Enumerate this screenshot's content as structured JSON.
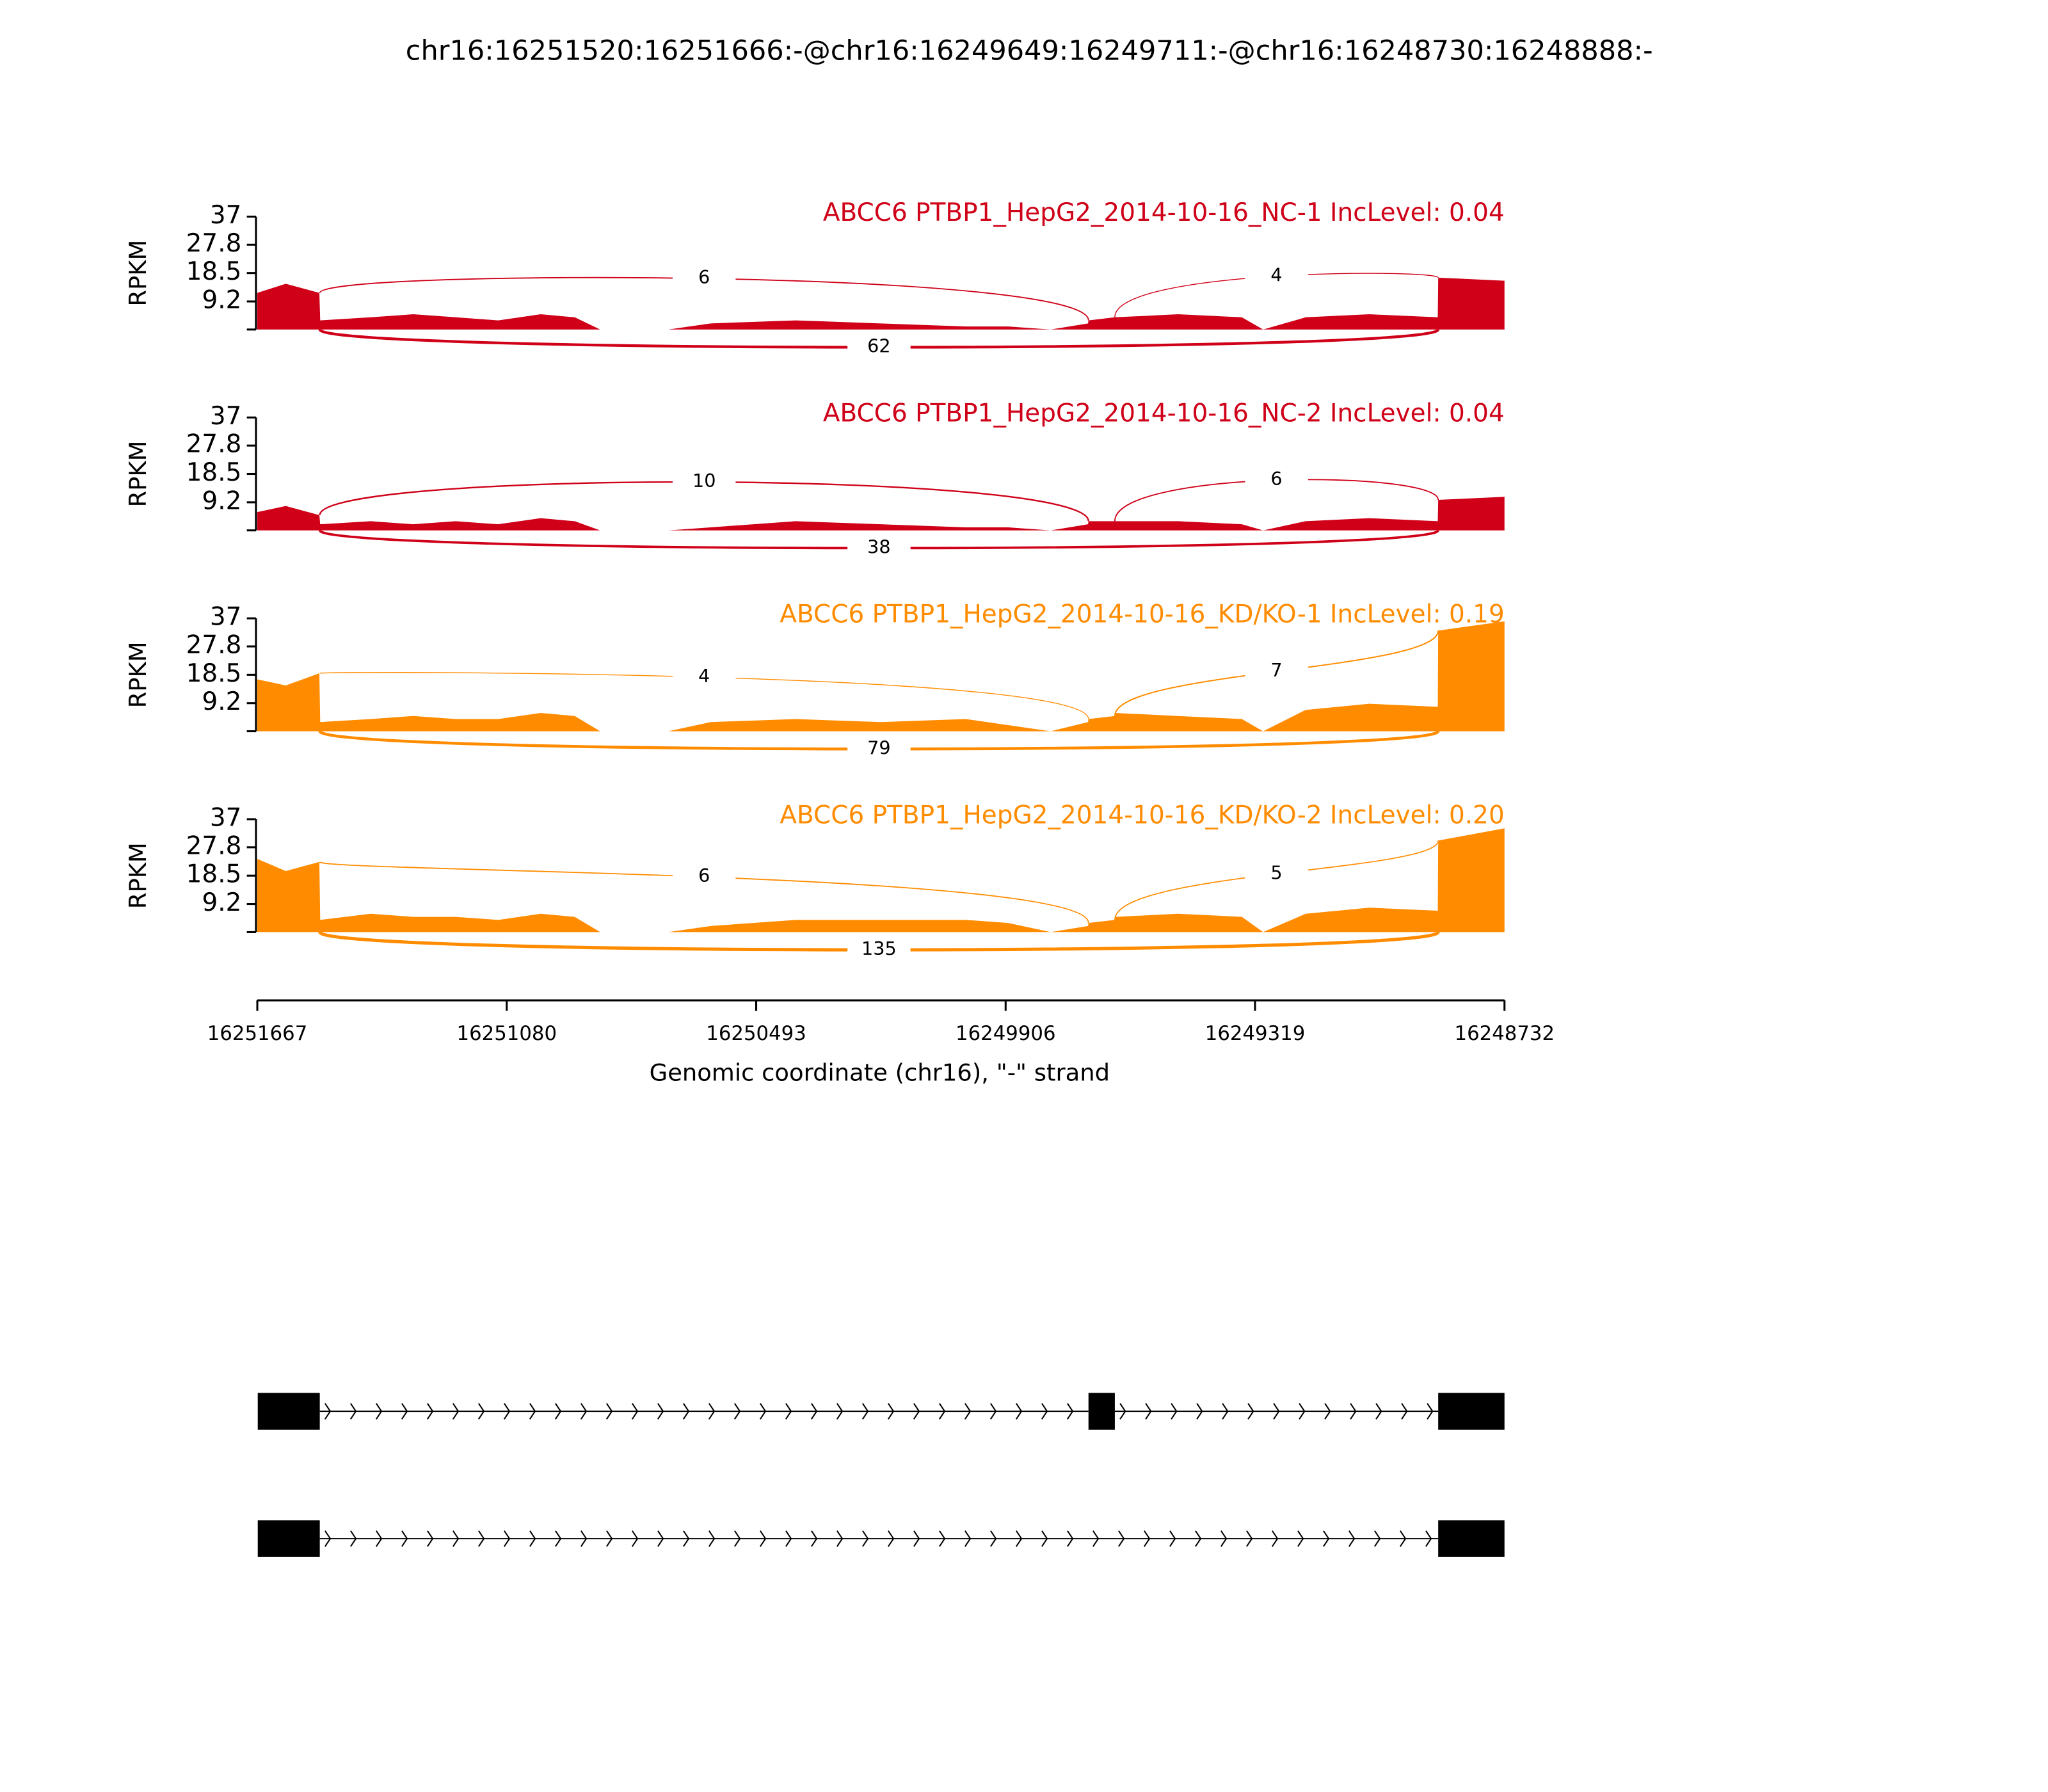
{
  "chart_data": {
    "type": "sashimi",
    "title": "chr16:16251520:16251666:-@chr16:16249649:16249711:-@chr16:16248730:16248888:-",
    "xlabel": "Genomic coordinate (chr16), \"-\" strand",
    "ylabel": "RPKM",
    "xlim": [
      16251667,
      16248732
    ],
    "xticks": [
      16251667,
      16251080,
      16250493,
      16249906,
      16249319,
      16248732
    ],
    "ylim": [
      0,
      37
    ],
    "yticks": [
      9.2,
      18.5,
      27.8,
      37
    ],
    "x": [
      16251667,
      16251600,
      16251521,
      16251519,
      16251400,
      16251300,
      16251200,
      16251100,
      16251000,
      16250920,
      16250860,
      16250700,
      16250600,
      16250400,
      16250200,
      16250000,
      16249900,
      16249800,
      16249712,
      16249711,
      16249649,
      16249648,
      16249500,
      16249350,
      16249300,
      16249200,
      16249050,
      16248889,
      16248888,
      16248732
    ],
    "tracks": [
      {
        "name": "ABCC6 PTBP1_HepG2_2014-10-16_NC-1 IncLevel: 0.04",
        "color": "#cf0018",
        "values": [
          12,
          15,
          12,
          3,
          4,
          5,
          4,
          3,
          5,
          4,
          0,
          0,
          2,
          3,
          2,
          1,
          1,
          0,
          2,
          3,
          4,
          4,
          5,
          4,
          0,
          4,
          5,
          4,
          17,
          16
        ],
        "junctions": [
          {
            "from": 16251520,
            "to": 16249711,
            "count": 6
          },
          {
            "from": 16249649,
            "to": 16248888,
            "count": 4
          },
          {
            "from": 16251520,
            "to": 16248888,
            "count": 62
          }
        ]
      },
      {
        "name": "ABCC6 PTBP1_HepG2_2014-10-16_NC-2 IncLevel: 0.04",
        "color": "#cf0018",
        "values": [
          6,
          8,
          5,
          2,
          3,
          2,
          3,
          2,
          4,
          3,
          0,
          0,
          1,
          3,
          2,
          1,
          1,
          0,
          2,
          3,
          3,
          3,
          3,
          2,
          0,
          3,
          4,
          3,
          10,
          11
        ],
        "junctions": [
          {
            "from": 16251520,
            "to": 16249711,
            "count": 10
          },
          {
            "from": 16249649,
            "to": 16248888,
            "count": 6
          },
          {
            "from": 16251520,
            "to": 16248888,
            "count": 38
          }
        ]
      },
      {
        "name": "ABCC6 PTBP1_HepG2_2014-10-16_KD/KO-1 IncLevel: 0.19",
        "color": "#ff8c00",
        "values": [
          17,
          15,
          19,
          3,
          4,
          5,
          4,
          4,
          6,
          5,
          0,
          0,
          3,
          4,
          3,
          4,
          2,
          0,
          3,
          4,
          5,
          6,
          5,
          4,
          0,
          7,
          9,
          8,
          33,
          36
        ],
        "junctions": [
          {
            "from": 16251520,
            "to": 16249711,
            "count": 4
          },
          {
            "from": 16249649,
            "to": 16248888,
            "count": 7
          },
          {
            "from": 16251520,
            "to": 16248888,
            "count": 79
          }
        ]
      },
      {
        "name": "ABCC6 PTBP1_HepG2_2014-10-16_KD/KO-2 IncLevel: 0.20",
        "color": "#ff8c00",
        "values": [
          24,
          20,
          23,
          4,
          6,
          5,
          5,
          4,
          6,
          5,
          0,
          0,
          2,
          4,
          4,
          4,
          3,
          0,
          2,
          3,
          4,
          5,
          6,
          5,
          0,
          6,
          8,
          7,
          30,
          34
        ],
        "junctions": [
          {
            "from": 16251520,
            "to": 16249711,
            "count": 6
          },
          {
            "from": 16249649,
            "to": 16248888,
            "count": 5
          },
          {
            "from": 16251520,
            "to": 16248888,
            "count": 135
          }
        ]
      }
    ],
    "transcripts": [
      {
        "exons": [
          [
            16251666,
            16251520
          ],
          [
            16249711,
            16249649
          ],
          [
            16248888,
            16248732
          ]
        ]
      },
      {
        "exons": [
          [
            16251666,
            16251520
          ],
          [
            16248888,
            16248732
          ]
        ]
      }
    ]
  }
}
